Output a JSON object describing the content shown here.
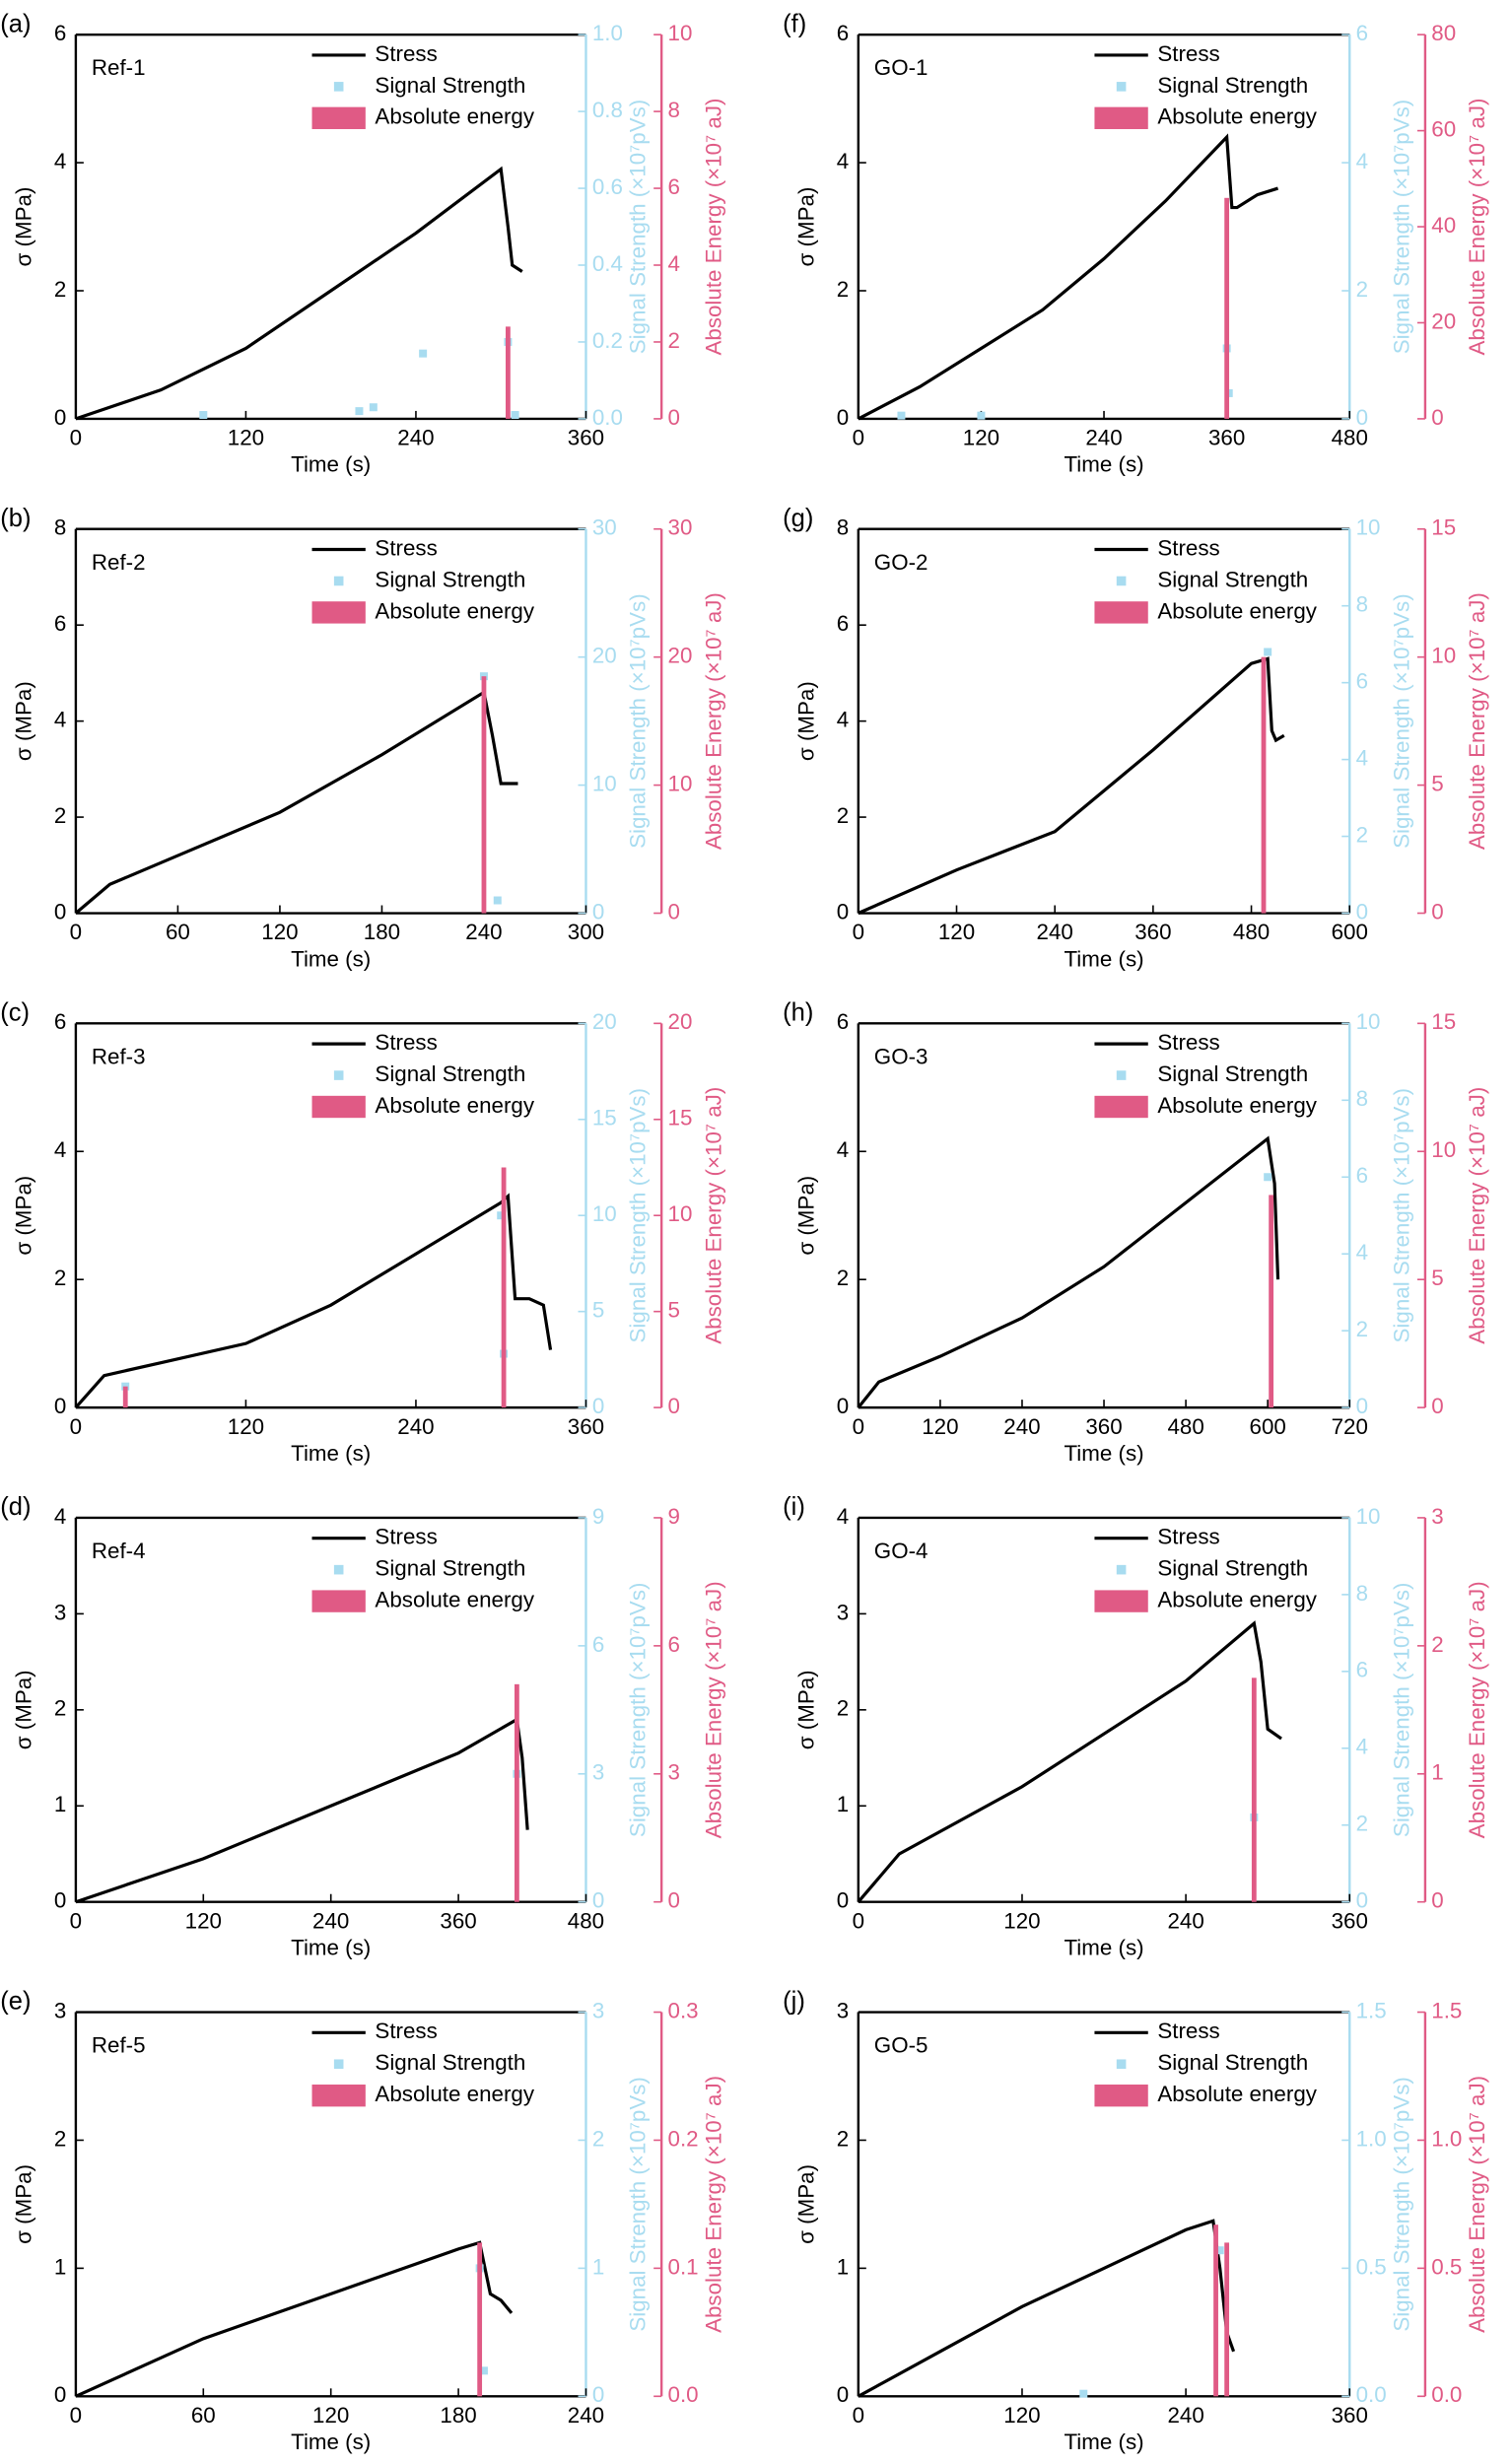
{
  "chart_data": [
    {
      "type": "combo",
      "label": "(a)",
      "sample": "Ref-1",
      "xlabel": "Time (s)",
      "ylabel": "σ (MPa)",
      "y2label": "Signal Strength (×10⁷pVs)",
      "y3label": "Absolute Energy (×10⁷ aJ)",
      "xlim": [
        0,
        360
      ],
      "xticks": [
        0,
        120,
        240,
        360
      ],
      "ylim": [
        0,
        6
      ],
      "yticks": [
        0,
        2,
        4,
        6
      ],
      "y2lim": [
        0,
        1
      ],
      "y2ticks": [
        {
          "value": 0,
          "label": "0.0"
        },
        0.2,
        0.4,
        0.6,
        0.8,
        {
          "value": 1,
          "label": "1.0"
        }
      ],
      "y3lim": [
        0,
        10
      ],
      "y3ticks": [
        0,
        2,
        4,
        6,
        8,
        10
      ],
      "series": [
        {
          "name": "Stress",
          "type": "line",
          "color": "#000000",
          "x": [
            0,
            60,
            120,
            180,
            240,
            300,
            305,
            308,
            315
          ],
          "values": [
            0,
            0.45,
            1.1,
            2.0,
            2.9,
            3.9,
            3.0,
            2.4,
            2.3
          ]
        },
        {
          "name": "Signal Strength",
          "type": "scatter",
          "axis": "y2",
          "color": "#a8dcf0",
          "x": [
            90,
            200,
            210,
            245,
            305,
            310
          ],
          "values": [
            0.01,
            0.02,
            0.03,
            0.17,
            0.2,
            0.01
          ]
        },
        {
          "name": "Absolute energy",
          "type": "bar",
          "axis": "y3",
          "color": "#e05a85",
          "x": [
            305
          ],
          "values": [
            2.4
          ]
        }
      ]
    },
    {
      "type": "combo",
      "label": "(b)",
      "sample": "Ref-2",
      "xlabel": "Time (s)",
      "ylabel": "σ (MPa)",
      "y2label": "Signal Strength (×10⁷pVs)",
      "y3label": "Absolute Energy (×10⁷ aJ)",
      "xlim": [
        0,
        300
      ],
      "xticks": [
        0,
        60,
        120,
        180,
        240,
        300
      ],
      "ylim": [
        0,
        8
      ],
      "yticks": [
        0,
        2,
        4,
        6,
        8
      ],
      "y2lim": [
        0,
        30
      ],
      "y2ticks": [
        0,
        10,
        20,
        30
      ],
      "y3lim": [
        0,
        30
      ],
      "y3ticks": [
        0,
        10,
        20,
        30
      ],
      "series": [
        {
          "name": "Stress",
          "type": "line",
          "color": "#000000",
          "x": [
            0,
            20,
            60,
            120,
            180,
            240,
            245,
            250,
            260
          ],
          "values": [
            0,
            0.6,
            1.2,
            2.1,
            3.3,
            4.6,
            3.7,
            2.7,
            2.7
          ]
        },
        {
          "name": "Signal Strength",
          "type": "scatter",
          "axis": "y2",
          "color": "#a8dcf0",
          "x": [
            240,
            248
          ],
          "values": [
            18.5,
            1
          ]
        },
        {
          "name": "Absolute energy",
          "type": "bar",
          "axis": "y3",
          "color": "#e05a85",
          "x": [
            240
          ],
          "values": [
            18.5
          ]
        }
      ]
    },
    {
      "type": "combo",
      "label": "(c)",
      "sample": "Ref-3",
      "xlabel": "Time (s)",
      "ylabel": "σ (MPa)",
      "y2label": "Signal Strength (×10⁷pVs)",
      "y3label": "Absolute Energy (×10⁷ aJ)",
      "xlim": [
        0,
        360
      ],
      "xticks": [
        0,
        120,
        240,
        360
      ],
      "ylim": [
        0,
        6
      ],
      "yticks": [
        0,
        2,
        4,
        6
      ],
      "y2lim": [
        0,
        20
      ],
      "y2ticks": [
        0,
        5,
        10,
        15,
        20
      ],
      "y3lim": [
        0,
        20
      ],
      "y3ticks": [
        0,
        5,
        10,
        15,
        20
      ],
      "series": [
        {
          "name": "Stress",
          "type": "line",
          "color": "#000000",
          "x": [
            0,
            20,
            60,
            120,
            180,
            240,
            300,
            305,
            310,
            320,
            330,
            335
          ],
          "values": [
            0,
            0.5,
            0.7,
            1.0,
            1.6,
            2.4,
            3.2,
            3.3,
            1.7,
            1.7,
            1.6,
            0.9
          ]
        },
        {
          "name": "Signal Strength",
          "type": "scatter",
          "axis": "y2",
          "color": "#a8dcf0",
          "x": [
            35,
            300,
            302
          ],
          "values": [
            1.1,
            10,
            2.8
          ]
        },
        {
          "name": "Absolute energy",
          "type": "bar",
          "axis": "y3",
          "color": "#e05a85",
          "x": [
            35,
            302
          ],
          "values": [
            1.1,
            12.5
          ]
        }
      ]
    },
    {
      "type": "combo",
      "label": "(d)",
      "sample": "Ref-4",
      "xlabel": "Time (s)",
      "ylabel": "σ (MPa)",
      "y2label": "Signal Strength (×10⁷pVs)",
      "y3label": "Absolute Energy (×10⁷ aJ)",
      "xlim": [
        0,
        480
      ],
      "xticks": [
        0,
        120,
        240,
        360,
        480
      ],
      "ylim": [
        0,
        4
      ],
      "yticks": [
        0,
        1,
        2,
        3,
        4
      ],
      "y2lim": [
        0,
        9
      ],
      "y2ticks": [
        0,
        3,
        6,
        9
      ],
      "y3lim": [
        0,
        9
      ],
      "y3ticks": [
        0,
        3,
        6,
        9
      ],
      "series": [
        {
          "name": "Stress",
          "type": "line",
          "color": "#000000",
          "x": [
            0,
            120,
            240,
            360,
            415,
            420,
            425
          ],
          "values": [
            0,
            0.45,
            1.0,
            1.55,
            1.9,
            1.5,
            0.75
          ]
        },
        {
          "name": "Signal Strength",
          "type": "scatter",
          "axis": "y2",
          "color": "#a8dcf0",
          "x": [
            415
          ],
          "values": [
            3
          ]
        },
        {
          "name": "Absolute energy",
          "type": "bar",
          "axis": "y3",
          "color": "#e05a85",
          "x": [
            415
          ],
          "values": [
            5.1
          ]
        }
      ]
    },
    {
      "type": "combo",
      "label": "(e)",
      "sample": "Ref-5",
      "xlabel": "Time (s)",
      "ylabel": "σ (MPa)",
      "y2label": "Signal Strength (×10⁷pVs)",
      "y3label": "Absolute Energy (×10⁷ aJ)",
      "xlim": [
        0,
        240
      ],
      "xticks": [
        0,
        60,
        120,
        180,
        240
      ],
      "ylim": [
        0,
        3
      ],
      "yticks": [
        0,
        1,
        2,
        3
      ],
      "y2lim": [
        0,
        3
      ],
      "y2ticks": [
        0,
        1,
        2,
        3
      ],
      "y3lim": [
        0,
        0.3
      ],
      "y3ticks": [
        {
          "value": 0,
          "label": "0.0"
        },
        0.1,
        0.2,
        0.3
      ],
      "series": [
        {
          "name": "Stress",
          "type": "line",
          "color": "#000000",
          "x": [
            0,
            60,
            120,
            180,
            190,
            195,
            200,
            205
          ],
          "values": [
            0,
            0.45,
            0.8,
            1.15,
            1.2,
            0.8,
            0.75,
            0.65
          ]
        },
        {
          "name": "Signal Strength",
          "type": "scatter",
          "axis": "y2",
          "color": "#a8dcf0",
          "x": [
            190,
            192
          ],
          "values": [
            1.0,
            0.2
          ]
        },
        {
          "name": "Absolute energy",
          "type": "bar",
          "axis": "y3",
          "color": "#e05a85",
          "x": [
            190
          ],
          "values": [
            0.12
          ]
        }
      ]
    },
    {
      "type": "combo",
      "label": "(f)",
      "sample": "GO-1",
      "xlabel": "Time (s)",
      "ylabel": "σ (MPa)",
      "y2label": "Signal Strength (×10⁷pVs)",
      "y3label": "Absolute Energy (×10⁷ aJ)",
      "xlim": [
        0,
        480
      ],
      "xticks": [
        0,
        120,
        240,
        360,
        480
      ],
      "ylim": [
        0,
        6
      ],
      "yticks": [
        0,
        2,
        4,
        6
      ],
      "y2lim": [
        0,
        6
      ],
      "y2ticks": [
        0,
        2,
        4,
        6
      ],
      "y3lim": [
        0,
        80
      ],
      "y3ticks": [
        0,
        20,
        40,
        60,
        80
      ],
      "series": [
        {
          "name": "Stress",
          "type": "line",
          "color": "#000000",
          "x": [
            0,
            60,
            120,
            180,
            240,
            300,
            360,
            365,
            370,
            390,
            410
          ],
          "values": [
            0,
            0.5,
            1.1,
            1.7,
            2.5,
            3.4,
            4.4,
            3.3,
            3.3,
            3.5,
            3.6
          ]
        },
        {
          "name": "Signal Strength",
          "type": "scatter",
          "axis": "y2",
          "color": "#a8dcf0",
          "x": [
            42,
            120,
            360,
            362
          ],
          "values": [
            0.05,
            0.05,
            1.1,
            0.4
          ]
        },
        {
          "name": "Absolute energy",
          "type": "bar",
          "axis": "y3",
          "color": "#e05a85",
          "x": [
            360
          ],
          "values": [
            46
          ]
        }
      ]
    },
    {
      "type": "combo",
      "label": "(g)",
      "sample": "GO-2",
      "xlabel": "Time (s)",
      "ylabel": "σ (MPa)",
      "y2label": "Signal Strength (×10⁷pVs)",
      "y3label": "Absolute Energy (×10⁷ aJ)",
      "xlim": [
        0,
        600
      ],
      "xticks": [
        0,
        120,
        240,
        360,
        480,
        600
      ],
      "ylim": [
        0,
        8
      ],
      "yticks": [
        0,
        2,
        4,
        6,
        8
      ],
      "y2lim": [
        0,
        10
      ],
      "y2ticks": [
        0,
        2,
        4,
        6,
        8,
        10
      ],
      "y3lim": [
        0,
        15
      ],
      "y3ticks": [
        0,
        5,
        10,
        15
      ],
      "series": [
        {
          "name": "Stress",
          "type": "line",
          "color": "#000000",
          "x": [
            0,
            120,
            240,
            360,
            480,
            500,
            505,
            510,
            520
          ],
          "values": [
            0,
            0.9,
            1.7,
            3.4,
            5.2,
            5.3,
            3.8,
            3.6,
            3.7
          ]
        },
        {
          "name": "Signal Strength",
          "type": "scatter",
          "axis": "y2",
          "color": "#a8dcf0",
          "x": [
            500
          ],
          "values": [
            6.8
          ]
        },
        {
          "name": "Absolute energy",
          "type": "bar",
          "axis": "y3",
          "color": "#e05a85",
          "x": [
            495
          ],
          "values": [
            10
          ]
        }
      ]
    },
    {
      "type": "combo",
      "label": "(h)",
      "sample": "GO-3",
      "xlabel": "Time (s)",
      "ylabel": "σ (MPa)",
      "y2label": "Signal Strength (×10⁷pVs)",
      "y3label": "Absolute Energy (×10⁷ aJ)",
      "xlim": [
        0,
        720
      ],
      "xticks": [
        0,
        120,
        240,
        360,
        480,
        600,
        720
      ],
      "ylim": [
        0,
        6
      ],
      "yticks": [
        0,
        2,
        4,
        6
      ],
      "y2lim": [
        0,
        10
      ],
      "y2ticks": [
        0,
        2,
        4,
        6,
        8,
        10
      ],
      "y3lim": [
        0,
        15
      ],
      "y3ticks": [
        0,
        5,
        10,
        15
      ],
      "series": [
        {
          "name": "Stress",
          "type": "line",
          "color": "#000000",
          "x": [
            0,
            30,
            120,
            240,
            360,
            480,
            600,
            610,
            615
          ],
          "values": [
            0,
            0.4,
            0.8,
            1.4,
            2.2,
            3.2,
            4.2,
            3.5,
            2.0
          ]
        },
        {
          "name": "Signal Strength",
          "type": "scatter",
          "axis": "y2",
          "color": "#a8dcf0",
          "x": [
            600
          ],
          "values": [
            6
          ]
        },
        {
          "name": "Absolute energy",
          "type": "bar",
          "axis": "y3",
          "color": "#e05a85",
          "x": [
            605
          ],
          "values": [
            8.3
          ]
        }
      ]
    },
    {
      "type": "combo",
      "label": "(i)",
      "sample": "GO-4",
      "xlabel": "Time (s)",
      "ylabel": "σ (MPa)",
      "y2label": "Signal Strength (×10⁷pVs)",
      "y3label": "Absolute Energy (×10⁷ aJ)",
      "xlim": [
        0,
        360
      ],
      "xticks": [
        0,
        120,
        240,
        360
      ],
      "ylim": [
        0,
        4
      ],
      "yticks": [
        0,
        1,
        2,
        3,
        4
      ],
      "y2lim": [
        0,
        10
      ],
      "y2ticks": [
        0,
        2,
        4,
        6,
        8,
        10
      ],
      "y3lim": [
        0,
        3
      ],
      "y3ticks": [
        0,
        1,
        2,
        3
      ],
      "series": [
        {
          "name": "Stress",
          "type": "line",
          "color": "#000000",
          "x": [
            0,
            30,
            120,
            240,
            290,
            295,
            300,
            310
          ],
          "values": [
            0,
            0.5,
            1.2,
            2.3,
            2.9,
            2.5,
            1.8,
            1.7
          ]
        },
        {
          "name": "Signal Strength",
          "type": "scatter",
          "axis": "y2",
          "color": "#a8dcf0",
          "x": [
            290
          ],
          "values": [
            2.2
          ]
        },
        {
          "name": "Absolute energy",
          "type": "bar",
          "axis": "y3",
          "color": "#e05a85",
          "x": [
            290
          ],
          "values": [
            1.75
          ]
        }
      ]
    },
    {
      "type": "combo",
      "label": "(j)",
      "sample": "GO-5",
      "xlabel": "Time (s)",
      "ylabel": "σ (MPa)",
      "y2label": "Signal Strength (×10⁷pVs)",
      "y3label": "Absolute Energy (×10⁷ aJ)",
      "xlim": [
        0,
        360
      ],
      "xticks": [
        0,
        120,
        240,
        360
      ],
      "ylim": [
        0,
        3
      ],
      "yticks": [
        0,
        1,
        2,
        3
      ],
      "y2lim": [
        0,
        1.5
      ],
      "y2ticks": [
        {
          "value": 0,
          "label": "0.0"
        },
        0.5,
        {
          "value": 1,
          "label": "1.0"
        },
        1.5
      ],
      "y3lim": [
        0,
        1.5
      ],
      "y3ticks": [
        {
          "value": 0,
          "label": "0.0"
        },
        0.5,
        {
          "value": 1,
          "label": "1.0"
        },
        1.5
      ],
      "series": [
        {
          "name": "Stress",
          "type": "line",
          "color": "#000000",
          "x": [
            0,
            60,
            120,
            180,
            240,
            260,
            265,
            270,
            275
          ],
          "values": [
            0,
            0.35,
            0.7,
            1.0,
            1.3,
            1.37,
            1.0,
            0.5,
            0.35
          ]
        },
        {
          "name": "Signal Strength",
          "type": "scatter",
          "axis": "y2",
          "color": "#a8dcf0",
          "x": [
            165,
            265
          ],
          "values": [
            0.01,
            0.57
          ]
        },
        {
          "name": "Absolute energy",
          "type": "bar",
          "axis": "y3",
          "color": "#e05a85",
          "x": [
            262,
            270
          ],
          "values": [
            0.67,
            0.6
          ]
        }
      ]
    }
  ]
}
